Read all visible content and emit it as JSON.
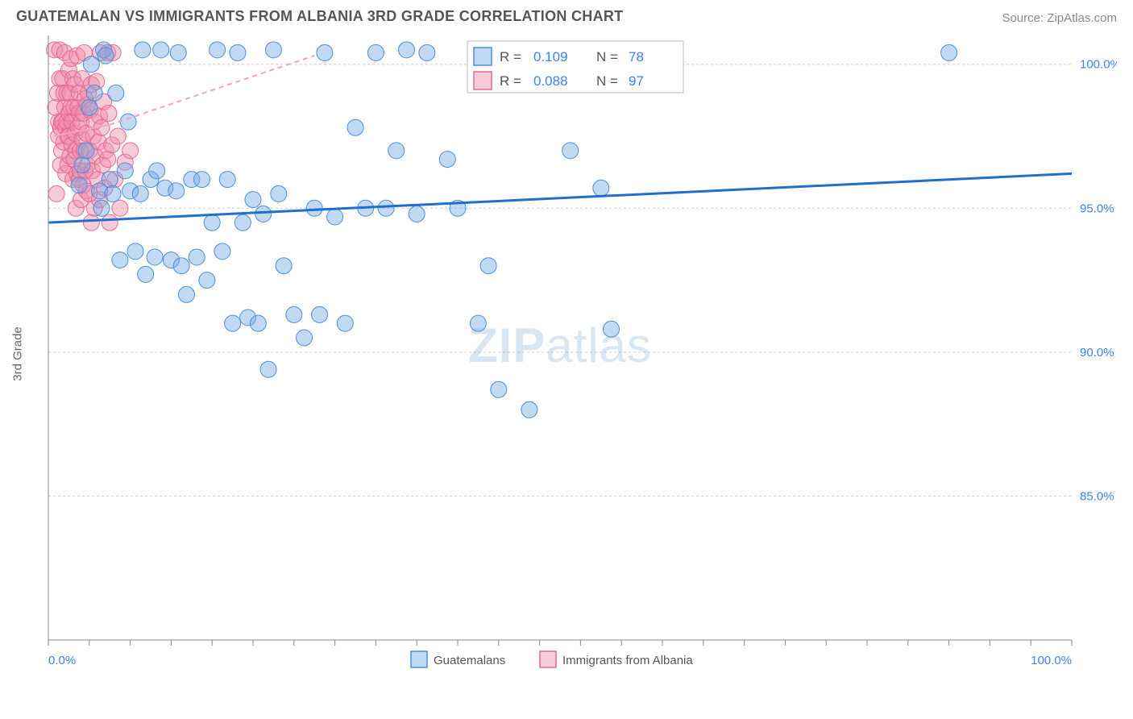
{
  "header": {
    "title": "GUATEMALAN VS IMMIGRANTS FROM ALBANIA 3RD GRADE CORRELATION CHART",
    "source_label": "Source: ZipAtlas.com"
  },
  "chart": {
    "type": "scatter",
    "ylabel": "3rd Grade",
    "xlim": [
      0,
      100
    ],
    "ylim": [
      80,
      101
    ],
    "y_ticks": [
      85.0,
      90.0,
      95.0,
      100.0
    ],
    "y_tick_labels": [
      "85.0%",
      "90.0%",
      "95.0%",
      "100.0%"
    ],
    "x_axis_start_label": "0.0%",
    "x_axis_end_label": "100.0%",
    "x_minor_ticks": [
      0,
      4,
      8,
      12,
      16,
      20,
      24,
      28,
      32,
      36,
      40,
      44,
      48,
      52,
      56,
      60,
      64,
      68,
      72,
      76,
      80,
      84,
      88,
      92,
      96,
      100
    ],
    "marker_radius": 10,
    "background_color": "#ffffff",
    "grid_color": "#cccccc",
    "axis_color": "#888888",
    "tick_label_color": "#3b82f6",
    "series": {
      "guatemalans": {
        "label": "Guatemalans",
        "fill": "rgba(120,170,230,0.45)",
        "stroke": "#4a90d9",
        "trend_color": "#1f6fd0",
        "trend": {
          "x1": 0,
          "y1": 94.5,
          "x2": 100,
          "y2": 96.2
        },
        "R": 0.109,
        "N": 78,
        "points": [
          [
            3,
            95.8
          ],
          [
            3.3,
            96.5
          ],
          [
            3.7,
            97.0
          ],
          [
            4,
            98.5
          ],
          [
            4.2,
            100.0
          ],
          [
            4.5,
            99.0
          ],
          [
            5,
            95.6
          ],
          [
            5.2,
            95.0
          ],
          [
            5.4,
            100.5
          ],
          [
            5.6,
            100.3
          ],
          [
            6,
            96.0
          ],
          [
            6.3,
            95.5
          ],
          [
            6.6,
            99.0
          ],
          [
            7,
            93.2
          ],
          [
            7.5,
            96.3
          ],
          [
            7.8,
            98.0
          ],
          [
            8,
            95.6
          ],
          [
            8.5,
            93.5
          ],
          [
            9,
            95.5
          ],
          [
            9.2,
            100.5
          ],
          [
            9.5,
            92.7
          ],
          [
            10,
            96.0
          ],
          [
            10.4,
            93.3
          ],
          [
            10.6,
            96.3
          ],
          [
            11,
            100.5
          ],
          [
            11.4,
            95.7
          ],
          [
            12,
            93.2
          ],
          [
            12.5,
            95.6
          ],
          [
            12.7,
            100.4
          ],
          [
            13,
            93.0
          ],
          [
            13.5,
            92.0
          ],
          [
            14,
            96.0
          ],
          [
            14.5,
            93.3
          ],
          [
            15,
            96.0
          ],
          [
            15.5,
            92.5
          ],
          [
            16,
            94.5
          ],
          [
            16.5,
            100.5
          ],
          [
            17,
            93.5
          ],
          [
            17.5,
            96.0
          ],
          [
            18,
            91.0
          ],
          [
            18.5,
            100.4
          ],
          [
            19,
            94.5
          ],
          [
            19.5,
            91.2
          ],
          [
            20,
            95.3
          ],
          [
            20.5,
            91.0
          ],
          [
            21,
            94.8
          ],
          [
            21.5,
            89.4
          ],
          [
            22,
            100.5
          ],
          [
            22.5,
            95.5
          ],
          [
            23,
            93.0
          ],
          [
            24,
            91.3
          ],
          [
            25,
            90.5
          ],
          [
            26,
            95.0
          ],
          [
            26.5,
            91.3
          ],
          [
            27,
            100.4
          ],
          [
            28,
            94.7
          ],
          [
            29,
            91.0
          ],
          [
            30,
            97.8
          ],
          [
            31,
            95.0
          ],
          [
            32,
            100.4
          ],
          [
            33,
            95.0
          ],
          [
            34,
            97.0
          ],
          [
            35,
            100.5
          ],
          [
            36,
            94.8
          ],
          [
            37,
            100.4
          ],
          [
            39,
            96.7
          ],
          [
            40,
            95.0
          ],
          [
            42,
            91.0
          ],
          [
            43,
            93.0
          ],
          [
            44,
            88.7
          ],
          [
            47,
            88.0
          ],
          [
            50,
            100.4
          ],
          [
            51,
            97.0
          ],
          [
            54,
            95.7
          ],
          [
            55,
            90.8
          ],
          [
            57,
            100.4
          ],
          [
            60,
            100.4
          ],
          [
            88,
            100.4
          ]
        ]
      },
      "albania": {
        "label": "Immigrants from Albania",
        "fill": "rgba(240,140,170,0.45)",
        "stroke": "#e56a94",
        "trend_color": "#f5a3ba",
        "trend_solid": {
          "x1": 0.5,
          "y1": 97.5,
          "x2": 6.0,
          "y2": 97.9
        },
        "trend_dash": {
          "x1": 6.0,
          "y1": 97.9,
          "x2": 26.0,
          "y2": 100.3
        },
        "R": 0.088,
        "N": 97,
        "points": [
          [
            0.6,
            100.5
          ],
          [
            0.7,
            98.5
          ],
          [
            0.8,
            95.5
          ],
          [
            0.9,
            99.0
          ],
          [
            1.0,
            98.0
          ],
          [
            1.0,
            97.5
          ],
          [
            1.1,
            100.5
          ],
          [
            1.1,
            99.5
          ],
          [
            1.2,
            97.8
          ],
          [
            1.2,
            96.5
          ],
          [
            1.3,
            98.0
          ],
          [
            1.3,
            97.0
          ],
          [
            1.4,
            99.5
          ],
          [
            1.4,
            98.0
          ],
          [
            1.5,
            99.0
          ],
          [
            1.5,
            97.3
          ],
          [
            1.6,
            100.4
          ],
          [
            1.6,
            98.5
          ],
          [
            1.7,
            97.8
          ],
          [
            1.7,
            96.2
          ],
          [
            1.8,
            99.0
          ],
          [
            1.8,
            98.0
          ],
          [
            1.9,
            96.5
          ],
          [
            1.9,
            97.5
          ],
          [
            2.0,
            99.8
          ],
          [
            2.0,
            98.3
          ],
          [
            2.0,
            97.5
          ],
          [
            2.1,
            99.0
          ],
          [
            2.1,
            96.8
          ],
          [
            2.2,
            98.5
          ],
          [
            2.2,
            100.2
          ],
          [
            2.3,
            98.0
          ],
          [
            2.3,
            97.2
          ],
          [
            2.4,
            96.0
          ],
          [
            2.4,
            99.5
          ],
          [
            2.5,
            98.5
          ],
          [
            2.5,
            96.7
          ],
          [
            2.6,
            97.6
          ],
          [
            2.6,
            99.3
          ],
          [
            2.7,
            97.0
          ],
          [
            2.7,
            95.0
          ],
          [
            2.8,
            100.3
          ],
          [
            2.8,
            96.2
          ],
          [
            2.9,
            98.5
          ],
          [
            2.9,
            97.8
          ],
          [
            3.0,
            96.0
          ],
          [
            3.0,
            98.3
          ],
          [
            3.0,
            99.0
          ],
          [
            3.1,
            97.0
          ],
          [
            3.1,
            96.3
          ],
          [
            3.2,
            98.0
          ],
          [
            3.2,
            95.3
          ],
          [
            3.3,
            99.5
          ],
          [
            3.3,
            97.4
          ],
          [
            3.4,
            95.8
          ],
          [
            3.4,
            98.3
          ],
          [
            3.5,
            100.4
          ],
          [
            3.5,
            97.0
          ],
          [
            3.6,
            96.3
          ],
          [
            3.6,
            98.8
          ],
          [
            3.7,
            95.6
          ],
          [
            3.7,
            97.6
          ],
          [
            3.8,
            98.6
          ],
          [
            3.8,
            96.5
          ],
          [
            3.9,
            99.0
          ],
          [
            4.0,
            97.0
          ],
          [
            4.0,
            95.5
          ],
          [
            4.1,
            98.4
          ],
          [
            4.2,
            99.3
          ],
          [
            4.2,
            94.5
          ],
          [
            4.3,
            96.3
          ],
          [
            4.4,
            97.5
          ],
          [
            4.5,
            98.0
          ],
          [
            4.5,
            95.0
          ],
          [
            4.6,
            96.8
          ],
          [
            4.7,
            99.4
          ],
          [
            4.8,
            96.0
          ],
          [
            4.9,
            97.3
          ],
          [
            5.0,
            98.2
          ],
          [
            5.0,
            95.3
          ],
          [
            5.1,
            100.4
          ],
          [
            5.2,
            97.8
          ],
          [
            5.3,
            96.5
          ],
          [
            5.4,
            98.7
          ],
          [
            5.5,
            95.7
          ],
          [
            5.6,
            97.0
          ],
          [
            5.8,
            100.4
          ],
          [
            5.8,
            96.7
          ],
          [
            5.9,
            98.3
          ],
          [
            6.0,
            94.5
          ],
          [
            6.2,
            97.2
          ],
          [
            6.3,
            100.4
          ],
          [
            6.5,
            96.0
          ],
          [
            6.8,
            97.5
          ],
          [
            7.0,
            95.0
          ],
          [
            7.5,
            96.6
          ],
          [
            8.0,
            97.0
          ]
        ]
      }
    },
    "stats_legend": {
      "rows": [
        {
          "swatch": "blue",
          "R": "0.109",
          "N": "78"
        },
        {
          "swatch": "pink",
          "R": "0.088",
          "N": "97"
        }
      ]
    },
    "bottom_legend": [
      {
        "swatch": "blue",
        "label": "Guatemalans"
      },
      {
        "swatch": "pink",
        "label": "Immigrants from Albania"
      }
    ],
    "watermark": {
      "part1": "ZIP",
      "part2": "atlas"
    }
  }
}
